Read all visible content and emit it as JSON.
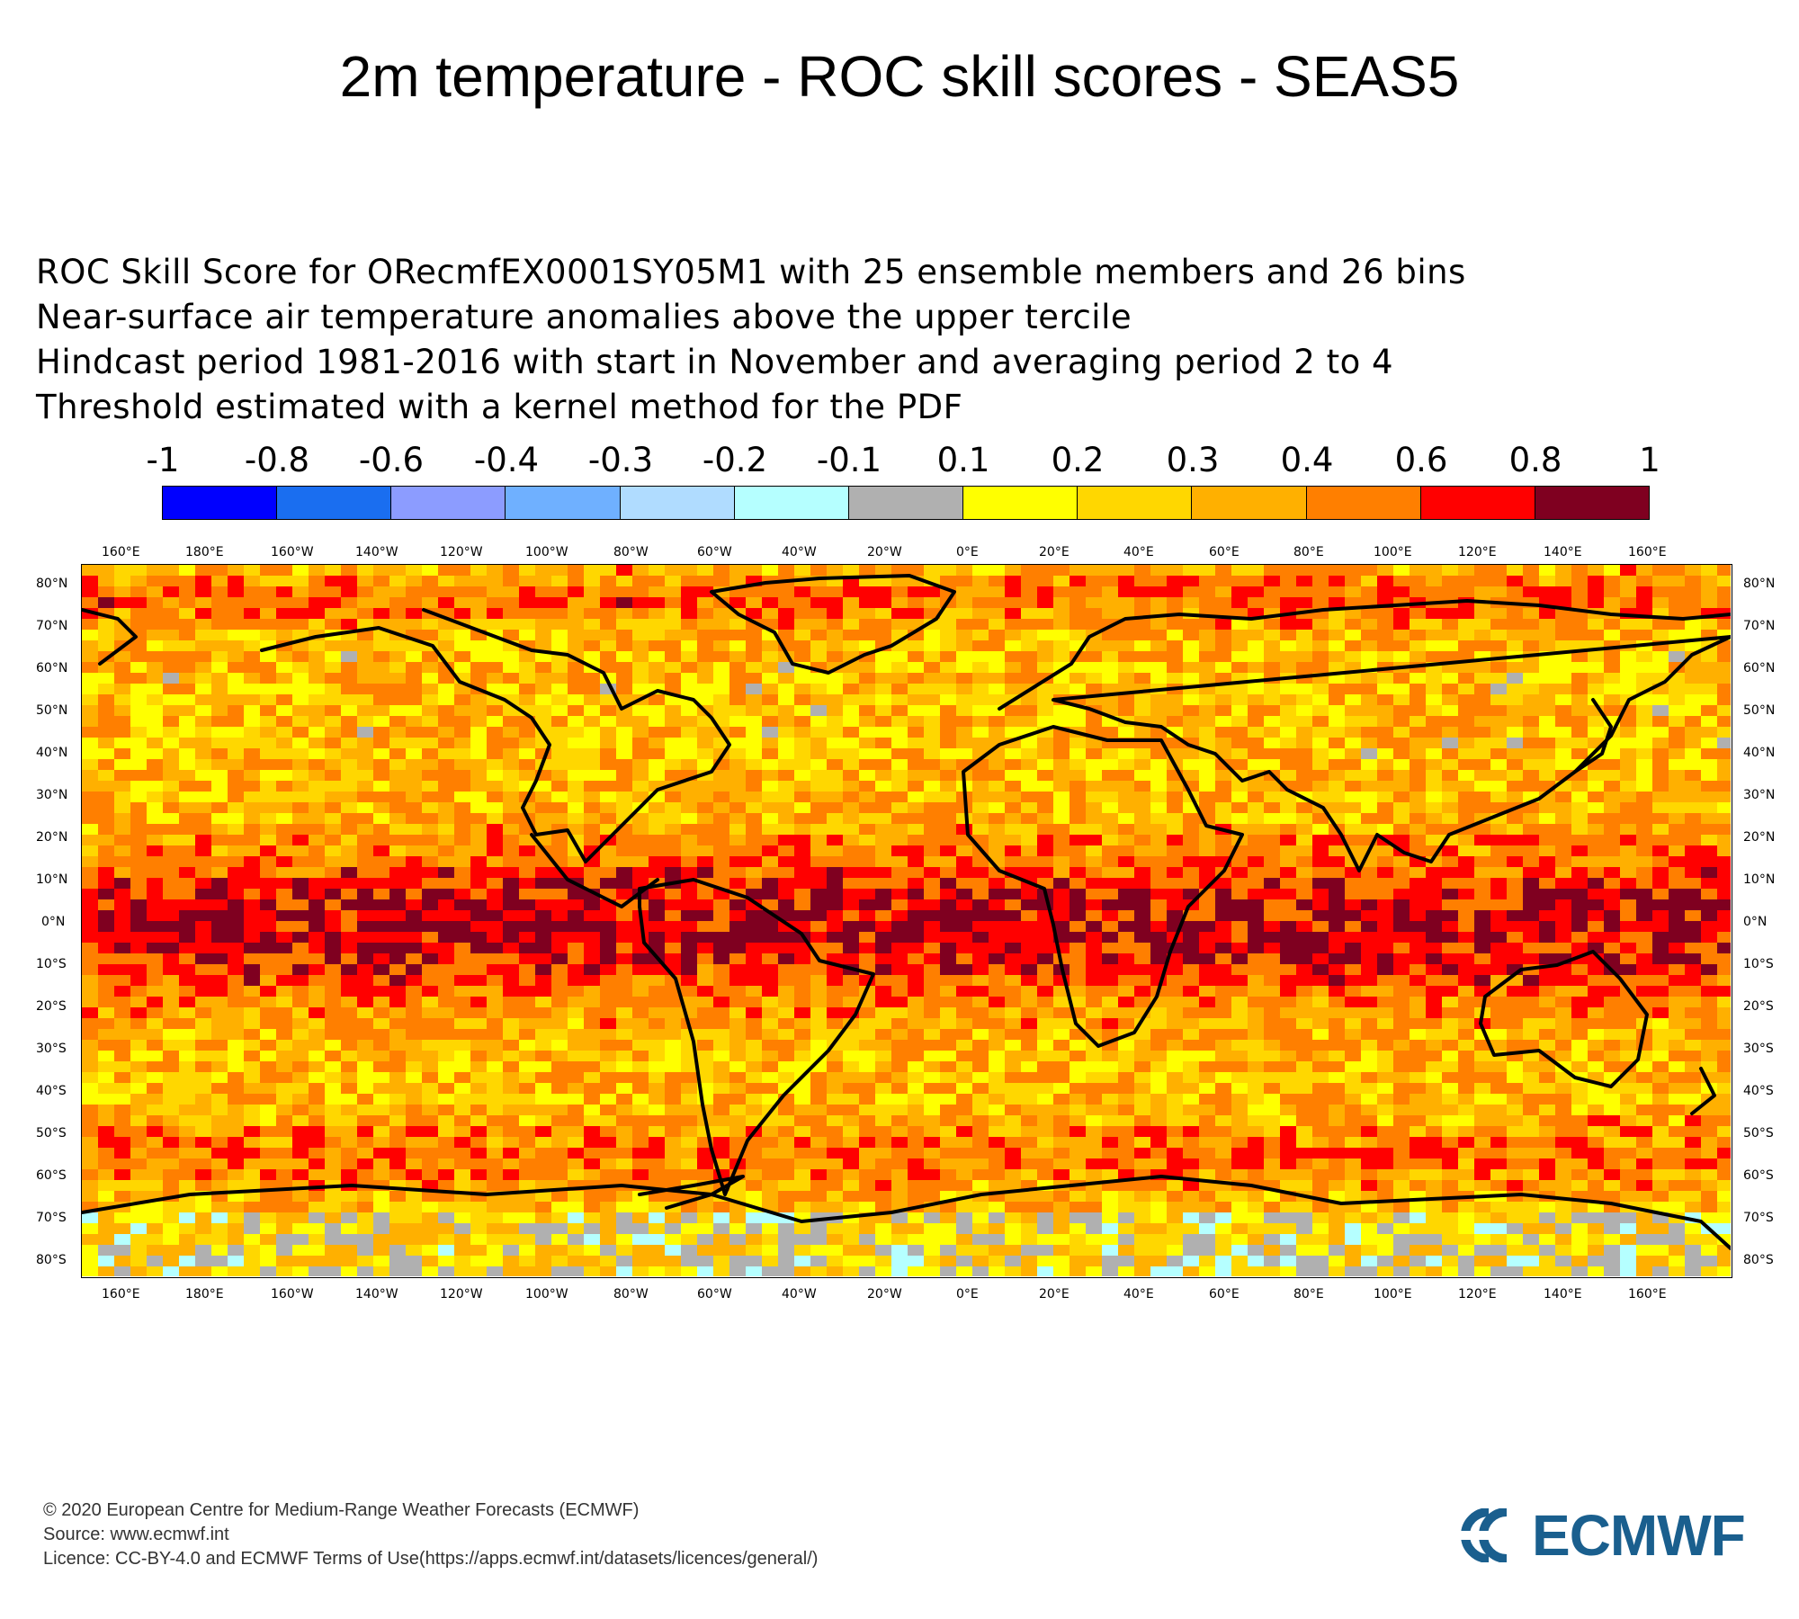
{
  "title": "2m temperature - ROC skill scores - SEAS5",
  "description": [
    "ROC Skill Score for ORecmfEX0001SY05M1 with 25 ensemble members and 26 bins",
    "Near-surface air temperature anomalies above the upper tercile",
    "Hindcast period 1981-2016 with start in November and averaging period  2 to  4",
    "Threshold estimated with a kernel method for the PDF"
  ],
  "legend": {
    "labels": [
      "-1",
      "-0.8",
      "-0.6",
      "-0.4",
      "-0.3",
      "-0.2",
      "-0.1",
      "0.1",
      "0.2",
      "0.3",
      "0.4",
      "0.6",
      "0.8",
      "1"
    ],
    "colors": [
      "#0000ff",
      "#1a6ef0",
      "#8c9cff",
      "#6fb0ff",
      "#b0dcff",
      "#b5ffff",
      "#b0b0b0",
      "#ffff00",
      "#ffd700",
      "#ffb000",
      "#ff7f00",
      "#ff0000",
      "#7f0020"
    ]
  },
  "axes": {
    "lon_labels": [
      "160°E",
      "180°E",
      "160°W",
      "140°W",
      "120°W",
      "100°W",
      "80°W",
      "60°W",
      "40°W",
      "20°W",
      "0°E",
      "20°E",
      "40°E",
      "60°E",
      "80°E",
      "100°E",
      "120°E",
      "140°E",
      "160°E"
    ],
    "lat_labels": [
      "80°N",
      "70°N",
      "60°N",
      "50°N",
      "40°N",
      "30°N",
      "20°N",
      "10°N",
      "0°N",
      "10°S",
      "20°S",
      "30°S",
      "40°S",
      "50°S",
      "60°S",
      "70°S",
      "80°S"
    ]
  },
  "map_content": {
    "projection": "cylindrical",
    "variable": "ROC skill score",
    "coastlines": true,
    "dominant_colors": "red/dark red in tropical belt; orange/yellow at mid-latitudes; grey and light blue patches near Antarctica and North Atlantic"
  },
  "footer": [
    "© 2020 European Centre for Medium-Range Weather Forecasts (ECMWF)",
    "Source: www.ecmwf.int",
    "Licence: CC-BY-4.0 and ECMWF Terms of Use(https://apps.ecmwf.int/datasets/licences/general/)"
  ],
  "logo_text": "ECMWF"
}
